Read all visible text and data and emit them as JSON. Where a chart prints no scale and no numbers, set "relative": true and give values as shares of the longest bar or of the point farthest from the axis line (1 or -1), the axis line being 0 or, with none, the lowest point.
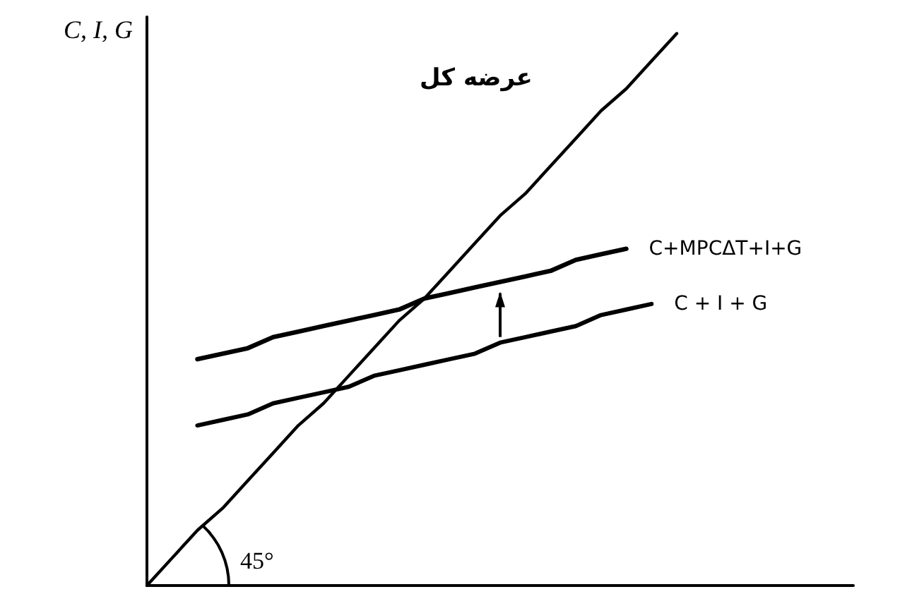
{
  "chart_data": {
    "type": "line",
    "relative": true,
    "ylabel": "C, I, G",
    "marker": "none",
    "categories": [
      null,
      null,
      null,
      null,
      null,
      null,
      null,
      null,
      null,
      null,
      null,
      null,
      null,
      null,
      null,
      null,
      null,
      null,
      null,
      null,
      null,
      null,
      null,
      null,
      null,
      null,
      null,
      null,
      null
    ],
    "series": [
      {
        "name": "عرضه کل",
        "color": "#000000",
        "values": [
          0,
          0.05,
          0.1,
          0.14,
          0.19,
          0.24,
          0.29,
          0.33,
          0.38,
          0.43,
          0.48,
          0.52,
          0.57,
          0.62,
          0.67,
          0.71,
          0.76,
          0.81,
          0.86,
          0.9,
          0.95,
          1,
          null,
          null,
          null,
          null,
          null,
          null,
          null
        ]
      },
      {
        "name": "C+MPCΔT+I+G",
        "color": "#000000",
        "values": [
          null,
          null,
          0.41,
          0.42,
          0.43,
          0.45,
          0.46,
          0.47,
          0.48,
          0.49,
          0.5,
          0.52,
          0.53,
          0.54,
          0.55,
          0.56,
          0.57,
          0.59,
          0.6,
          0.61,
          null,
          null,
          null,
          null,
          null,
          null,
          null,
          null,
          null
        ]
      },
      {
        "name": "C + I + G",
        "color": "#000000",
        "values": [
          null,
          null,
          0.29,
          0.3,
          0.31,
          0.33,
          0.34,
          0.35,
          0.36,
          0.38,
          0.39,
          0.4,
          0.41,
          0.42,
          0.44,
          0.45,
          0.46,
          0.47,
          0.49,
          0.5,
          0.51,
          null,
          null,
          null,
          null,
          null,
          null,
          null,
          null
        ]
      }
    ],
    "annotations": [
      "45°"
    ]
  }
}
